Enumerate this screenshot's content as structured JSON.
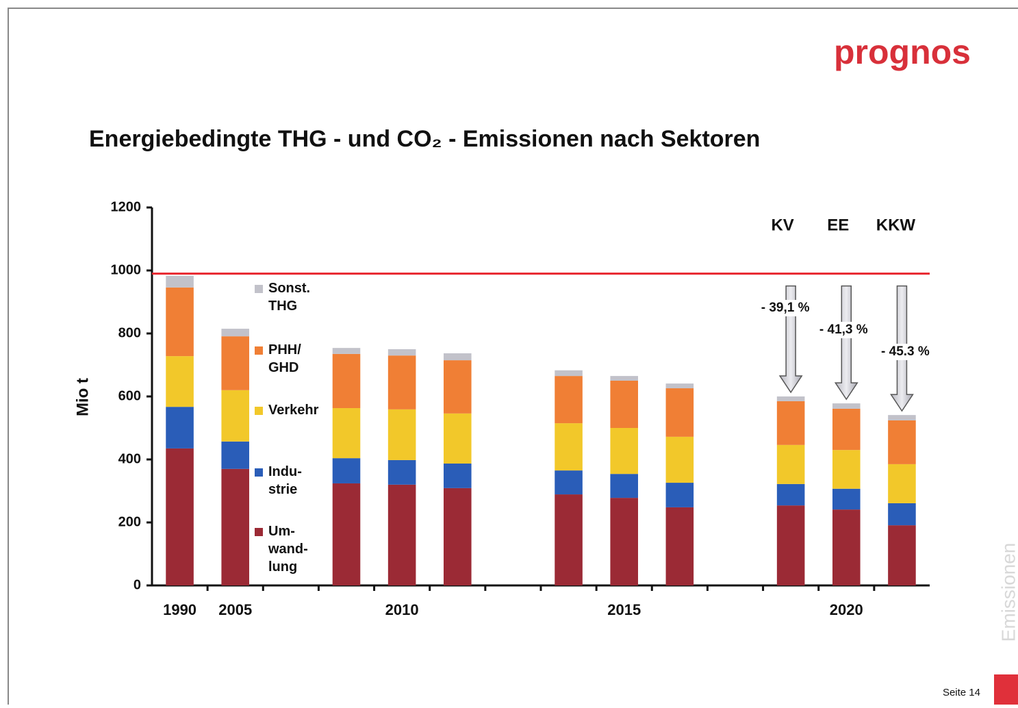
{
  "chart_data": {
    "type": "stacked_bar",
    "logo": "prognos",
    "title": "Energiebedingte THG - und CO₂ - Emissionen nach Sektoren",
    "ylabel": "Mio t",
    "categories": [
      "1990",
      "2005",
      null,
      null,
      "2010",
      null,
      null,
      null,
      "2015",
      null,
      null,
      null,
      "2020",
      null
    ],
    "series": [
      {
        "name": "Um-\nwand-\nlung",
        "color": "#9b2a35",
        "values": [
          435,
          370,
          null,
          324,
          320,
          309,
          null,
          289,
          278,
          248,
          null,
          254,
          241,
          191
        ]
      },
      {
        "name": "Indu-\nstrie",
        "color": "#2a5db8",
        "values": [
          132,
          87,
          null,
          80,
          78,
          78,
          null,
          76,
          76,
          78,
          null,
          68,
          66,
          70
        ]
      },
      {
        "name": "Verkehr",
        "color": "#f2c82a",
        "values": [
          161,
          163,
          null,
          159,
          161,
          159,
          null,
          150,
          146,
          146,
          null,
          124,
          123,
          124
        ]
      },
      {
        "name": "PHH/\nGHD",
        "color": "#f07f35",
        "values": [
          218,
          171,
          null,
          172,
          171,
          169,
          null,
          150,
          150,
          154,
          null,
          139,
          131,
          139
        ]
      },
      {
        "name": "Sonst.\nTHG",
        "color": "#c2c2ca",
        "values": [
          37,
          24,
          null,
          19,
          20,
          22,
          null,
          18,
          15,
          15,
          null,
          15,
          17,
          17
        ]
      }
    ],
    "ylim": [
      0,
      1200
    ],
    "yticks": [
      0,
      200,
      400,
      600,
      800,
      1000,
      1200
    ],
    "reference_line": {
      "value": 990,
      "color": "#e8262e"
    },
    "scenarios": [
      {
        "label": "KV",
        "change": "- 39,1 %"
      },
      {
        "label": "EE",
        "change": "- 41,3 %"
      },
      {
        "label": "KKW",
        "change": "- 45.3 %"
      }
    ],
    "footer": "Seite 14",
    "side_label": "Emissionen"
  }
}
